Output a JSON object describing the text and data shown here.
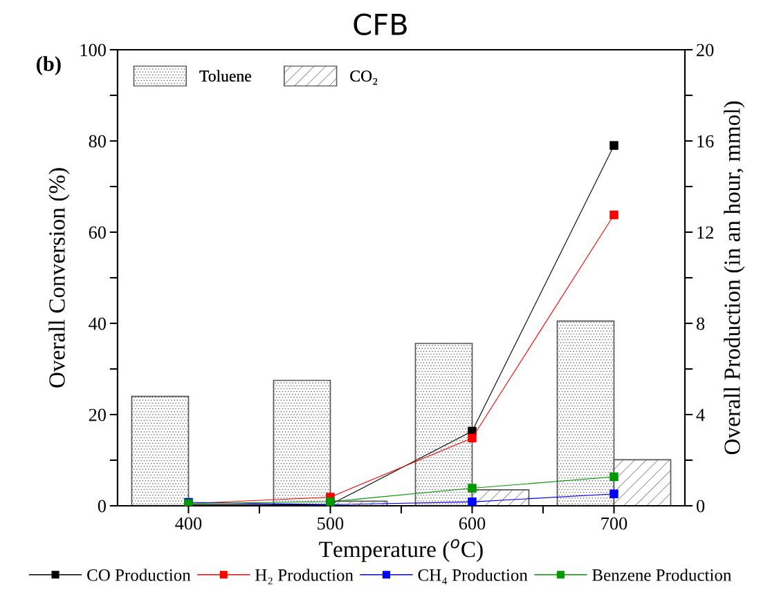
{
  "chart_data": {
    "type": "bar",
    "title": "CFB",
    "xlabel": "Temperature ($^{o}$C)",
    "ylabel": "Overall Conversion (%)",
    "y2label": "Overall Production (in an hour, mmol)",
    "annotations": [
      "(b)"
    ],
    "xlim": [
      350,
      750
    ],
    "xticks": [
      400,
      {
        "value": 450,
        "label": null
      },
      500,
      {
        "value": 550,
        "label": null
      },
      600,
      {
        "value": 650,
        "label": null
      },
      700
    ],
    "ylim": [
      0,
      100
    ],
    "yticks": [
      0,
      {
        "value": 10,
        "label": null
      },
      20,
      {
        "value": 30,
        "label": null
      },
      40,
      {
        "value": 50,
        "label": null
      },
      60,
      {
        "value": 70,
        "label": null
      },
      80,
      {
        "value": 90,
        "label": null
      },
      100
    ],
    "y2lim": [
      0,
      20
    ],
    "y2ticks": [
      0,
      {
        "value": 2,
        "label": null
      },
      4,
      {
        "value": 6,
        "label": null
      },
      8,
      {
        "value": 10,
        "label": null
      },
      12,
      {
        "value": 14,
        "label": null
      },
      16,
      {
        "value": 18,
        "label": null
      },
      20
    ],
    "legend": "bottom",
    "grid": false,
    "marker": "square",
    "line_style": "solid",
    "series": [
      {
        "name": "Toluene",
        "color": "#555555",
        "x": [
          380,
          480,
          580,
          680
        ],
        "values": [
          24.0,
          27.5,
          35.6,
          40.5
        ]
      },
      {
        "name": "CO₂",
        "color": "#555555",
        "x": [
          420,
          520,
          620,
          720
        ],
        "values": [
          0,
          1.0,
          3.5,
          10.1
        ]
      },
      {
        "name": "CO Production",
        "type": "line",
        "axis": "y2",
        "color": "#000000",
        "x": [
          400,
          500,
          600,
          700
        ],
        "values": [
          0.05,
          0.05,
          3.27,
          15.8
        ]
      },
      {
        "name": "H₂ Production",
        "type": "line",
        "axis": "y2",
        "color": "#ff0000",
        "x": [
          400,
          500,
          600,
          700
        ],
        "values": [
          0.1,
          0.38,
          2.97,
          12.76
        ]
      },
      {
        "name": "CH₄ Production",
        "type": "line",
        "axis": "y2",
        "color": "#0000ff",
        "x": [
          400,
          500,
          600,
          700
        ],
        "values": [
          0.15,
          0.05,
          0.17,
          0.52
        ]
      },
      {
        "name": "Benzene Production",
        "type": "line",
        "axis": "y2",
        "color": "#009900",
        "x": [
          400,
          500,
          600,
          700
        ],
        "values": [
          0.1,
          0.18,
          0.77,
          1.27
        ]
      }
    ]
  }
}
